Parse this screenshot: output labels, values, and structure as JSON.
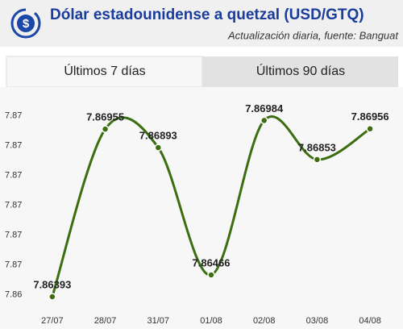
{
  "header": {
    "title": "Dólar estadounidense a quetzal (USD/GTQ)",
    "subtitle": "Actualización diaria, fuente: Banguat"
  },
  "tabs": [
    "Últimos 7 días",
    "Últimos 90 días"
  ],
  "chart_data": {
    "type": "line",
    "curve": "smooth",
    "color": "#3b6e10",
    "categories": [
      "27/07",
      "28/07",
      "31/07",
      "01/08",
      "02/08",
      "03/08",
      "04/08"
    ],
    "values": [
      7.86393,
      7.86955,
      7.86893,
      7.86466,
      7.86984,
      7.86853,
      7.86956
    ],
    "ylim": [
      7.8632,
      7.8705
    ],
    "yticks": [
      {
        "value": 7.864,
        "label": "7.86"
      },
      {
        "value": 7.865,
        "label": "7.87"
      },
      {
        "value": 7.866,
        "label": "7.87"
      },
      {
        "value": 7.867,
        "label": "7.87"
      },
      {
        "value": 7.868,
        "label": "7.87"
      },
      {
        "value": 7.869,
        "label": "7.87"
      },
      7.87
    ],
    "grid": false
  }
}
